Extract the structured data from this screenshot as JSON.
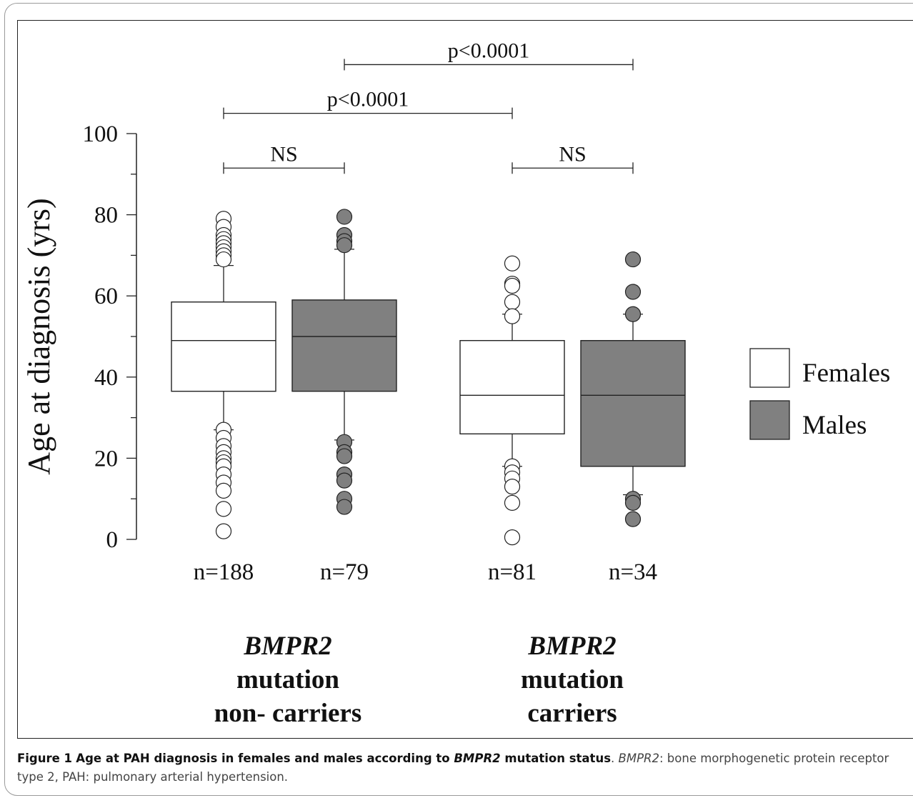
{
  "chart_data": {
    "type": "box",
    "ylabel": "Age at diagnosis (yrs)",
    "ylim": [
      0,
      100
    ],
    "yticks": [
      "0",
      "20",
      "40",
      "60",
      "80",
      "100"
    ],
    "legend": {
      "placement": "right",
      "entries": [
        {
          "name": "Females",
          "color": "#ffffff"
        },
        {
          "name": "Males",
          "color": "#808080"
        }
      ]
    },
    "groups": [
      {
        "label_italic": "BMPR2",
        "label_lines": [
          "mutation",
          "non- carriers"
        ]
      },
      {
        "label_italic": "BMPR2",
        "label_lines": [
          "mutation",
          "carriers"
        ]
      }
    ],
    "boxes": [
      {
        "group": 0,
        "series": "Females",
        "n_label": "n=188",
        "whisker_low": 27,
        "q1": 36.5,
        "median": 49,
        "q3": 58.5,
        "whisker_high": 67.5,
        "outliers": [
          79,
          77,
          75,
          74,
          73,
          72,
          71,
          70,
          69,
          27,
          25,
          23,
          21.5,
          20,
          19,
          18,
          16,
          14,
          12,
          7.5,
          2
        ]
      },
      {
        "group": 0,
        "series": "Males",
        "n_label": "n=79",
        "whisker_low": 24.5,
        "q1": 36.5,
        "median": 50,
        "q3": 59,
        "whisker_high": 71.5,
        "outliers": [
          79.5,
          75,
          73.5,
          72.5,
          24,
          21.5,
          20.5,
          16,
          14.5,
          10,
          8
        ]
      },
      {
        "group": 1,
        "series": "Females",
        "n_label": "n=81",
        "whisker_low": 18,
        "q1": 26,
        "median": 35.5,
        "q3": 49,
        "whisker_high": 55.5,
        "outliers": [
          68,
          63,
          62.5,
          58.5,
          55,
          18,
          16.5,
          15,
          13,
          9,
          0.5
        ]
      },
      {
        "group": 1,
        "series": "Males",
        "n_label": "n=34",
        "whisker_low": 11,
        "q1": 18,
        "median": 35.5,
        "q3": 49,
        "whisker_high": 55.5,
        "outliers": [
          69,
          61,
          55.5,
          10,
          9,
          5
        ]
      }
    ],
    "comparisons": [
      {
        "from_box": 0,
        "to_box": 1,
        "label": "NS",
        "level": 91.5
      },
      {
        "from_box": 2,
        "to_box": 3,
        "label": "NS",
        "level": 91.5
      },
      {
        "from_box": 0,
        "to_box": 2,
        "label": "p<0.0001",
        "level": 105
      },
      {
        "from_box": 1,
        "to_box": 3,
        "label": "p<0.0001",
        "level": 117
      }
    ]
  },
  "caption": {
    "lead": "Figure 1",
    "title_pre": "Age at PAH diagnosis in females and males according to ",
    "title_italic": "BMPR2",
    "title_post": " mutation status",
    "sep": ". ",
    "abbr_italic": "BMPR2",
    "text": ": bone morphogenetic protein receptor type 2, PAH: pulmonary arterial hypertension."
  }
}
